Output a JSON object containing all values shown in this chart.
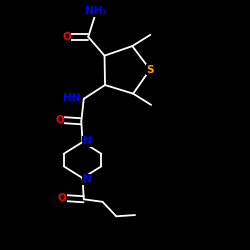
{
  "background_color": "#000000",
  "bond_color": "#ffffff",
  "atom_colors": {
    "N": "#0000ff",
    "O": "#ff0000",
    "S": "#ffaa00",
    "C": "#ffffff",
    "H": "#ffffff"
  },
  "figsize": [
    2.5,
    2.5
  ],
  "dpi": 100
}
